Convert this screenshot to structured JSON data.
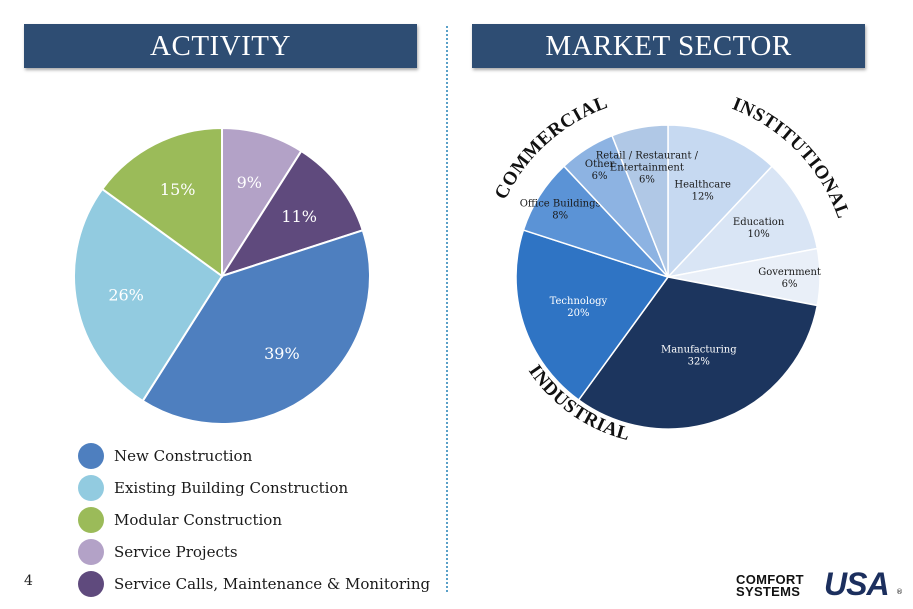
{
  "page": {
    "number": "4"
  },
  "banners": {
    "left": "ACTIVITY",
    "right": "MARKET SECTOR"
  },
  "logo": {
    "line1": "COMFORT",
    "line2": "SYSTEMS",
    "mark": "USA",
    "reg": "®"
  },
  "chart_data": [
    {
      "type": "pie",
      "title": "ACTIVITY",
      "slices": [
        {
          "label": "New Construction",
          "value": 39,
          "display": "39%",
          "color": "#4e7fbf"
        },
        {
          "label": "Existing Building Construction",
          "value": 26,
          "display": "26%",
          "color": "#92cbe0"
        },
        {
          "label": "Modular Construction",
          "value": 15,
          "display": "15%",
          "color": "#9bbb59"
        },
        {
          "label": "Service Projects",
          "value": 9,
          "display": "9%",
          "color": "#b3a2c7"
        },
        {
          "label": "Service Calls, Maintenance & Monitoring",
          "value": 11,
          "display": "11%",
          "color": "#5f4a7d"
        }
      ],
      "legend_position": "bottom"
    },
    {
      "type": "pie",
      "title": "MARKET SECTOR",
      "slices": [
        {
          "label": "Healthcare",
          "value": 12,
          "display": "12%",
          "color": "#c6d9f1"
        },
        {
          "label": "Education",
          "value": 10,
          "display": "10%",
          "color": "#d9e5f5"
        },
        {
          "label": "Government",
          "value": 6,
          "display": "6%",
          "color": "#e9eff8"
        },
        {
          "label": "Manufacturing",
          "value": 32,
          "display": "32%",
          "color": "#1c355e"
        },
        {
          "label": "Technology",
          "value": 20,
          "display": "20%",
          "color": "#2f74c4"
        },
        {
          "label": "Office Buildings",
          "value": 8,
          "display": "8%",
          "color": "#5b93d6"
        },
        {
          "label": "Other",
          "value": 6,
          "display": "6%",
          "color": "#8db3e2"
        },
        {
          "label": "Retail / Restaurant / Entertainment",
          "value": 6,
          "display": "6%",
          "color": "#b0c8e6"
        }
      ],
      "groups": [
        "COMMERCIAL",
        "INSTITUTIONAL",
        "INDUSTRIAL"
      ]
    }
  ]
}
